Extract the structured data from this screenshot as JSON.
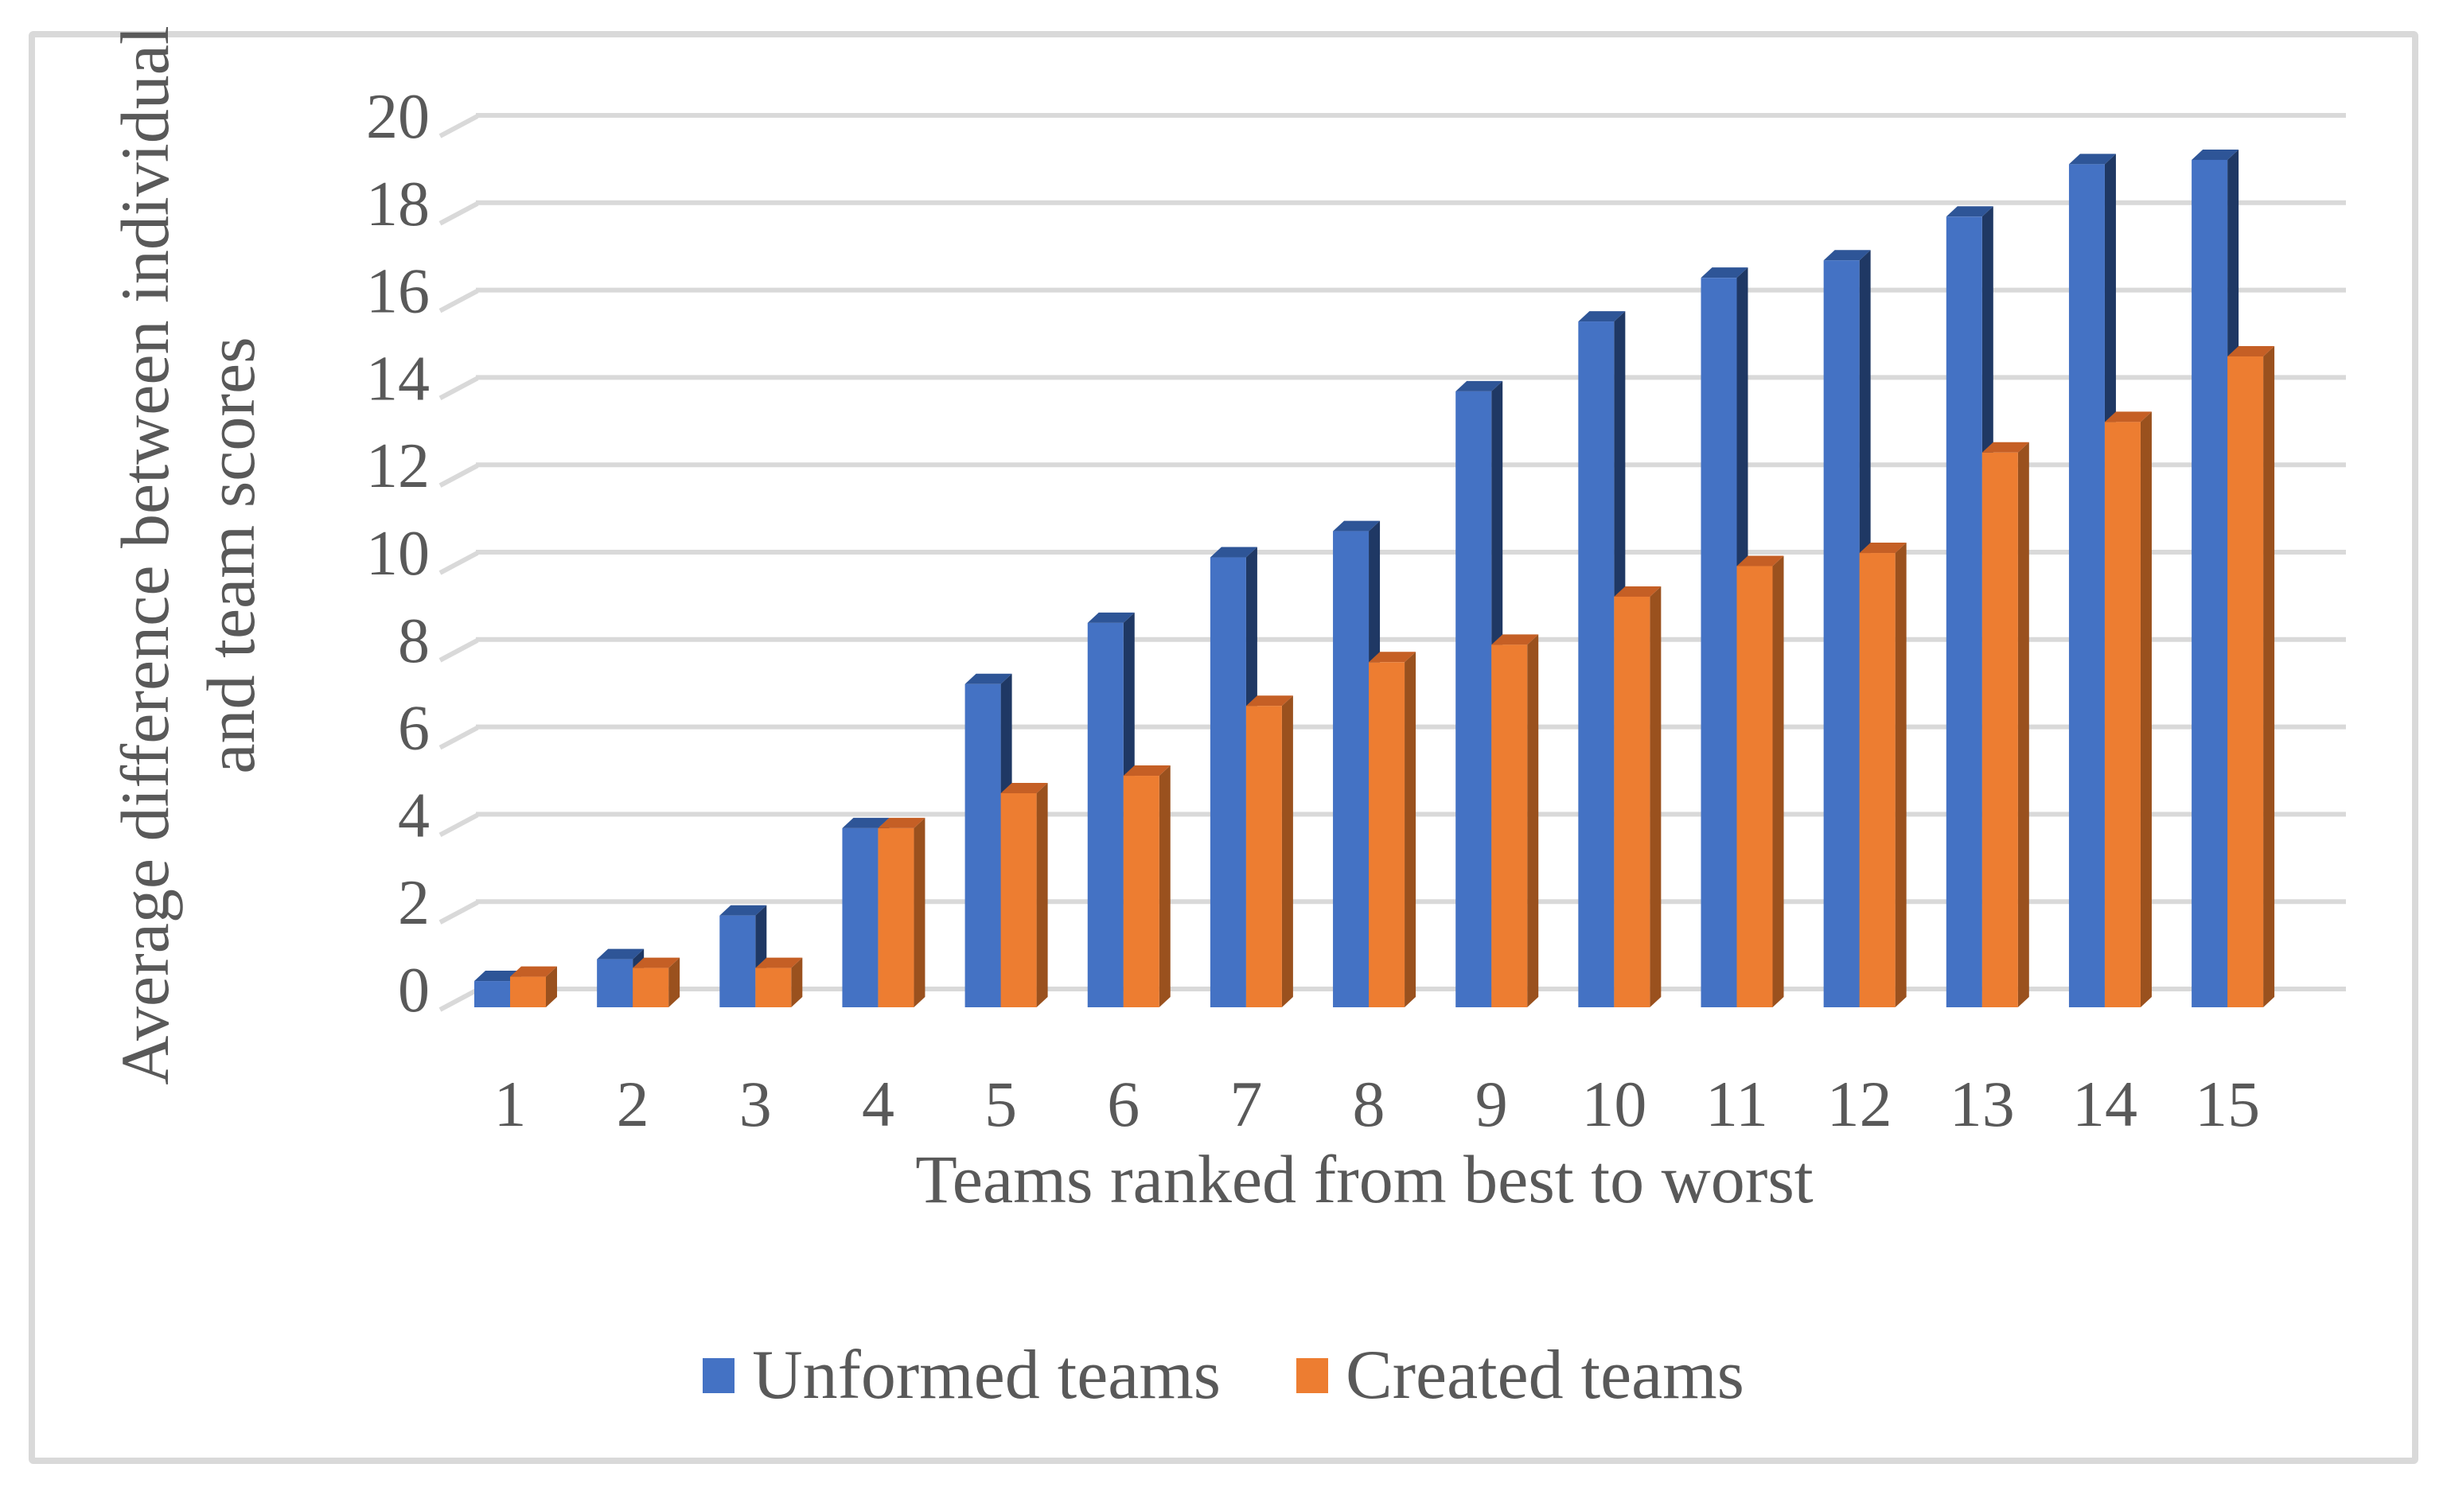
{
  "chart_data": {
    "type": "bar",
    "style": "3d-clustered-column",
    "title": "",
    "categories": [
      "1",
      "2",
      "3",
      "4",
      "5",
      "6",
      "7",
      "8",
      "9",
      "10",
      "11",
      "12",
      "13",
      "14",
      "15"
    ],
    "series": [
      {
        "name": "Unformed teams",
        "color": "#4472C4",
        "values": [
          0.6,
          1.1,
          2.1,
          4.1,
          7.4,
          8.8,
          10.3,
          10.9,
          14.1,
          15.7,
          16.7,
          17.1,
          18.1,
          19.3,
          19.4
        ]
      },
      {
        "name": "Created teams",
        "color": "#ED7D31",
        "values": [
          0.7,
          0.9,
          0.9,
          4.1,
          4.9,
          5.3,
          6.9,
          7.9,
          8.3,
          9.4,
          10.1,
          10.4,
          12.7,
          13.4,
          14.9
        ]
      }
    ],
    "xlabel": "Teams ranked from best to worst",
    "ylabel": "Average difference between individual and team scores",
    "ylabel_lines": [
      "Average difference between individual",
      "and team scores"
    ],
    "yticks": [
      0,
      2,
      4,
      6,
      8,
      10,
      12,
      14,
      16,
      18,
      20
    ],
    "ylim": [
      0,
      20
    ],
    "grid": true,
    "legend_position": "bottom",
    "colors": {
      "grid": "#D9D9D9",
      "frame_border": "#D9D9D9",
      "text": "#595959",
      "unformed_front": "#4472C4",
      "unformed_top": "#2E5597",
      "unformed_side": "#1F3864",
      "created_front": "#ED7D31",
      "created_top": "#C55F25",
      "created_side": "#9A511E"
    }
  }
}
